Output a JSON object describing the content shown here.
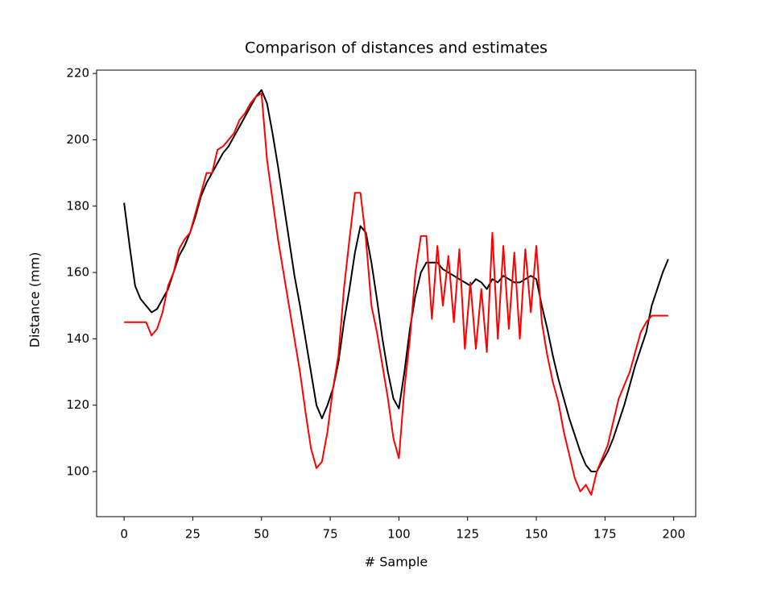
{
  "chart_data": {
    "type": "line",
    "title": "Comparison of distances and estimates",
    "xlabel": "# Sample",
    "ylabel": "Distance (mm)",
    "x": [
      0,
      2,
      4,
      6,
      8,
      10,
      12,
      14,
      16,
      18,
      20,
      22,
      24,
      26,
      28,
      30,
      32,
      34,
      36,
      38,
      40,
      42,
      44,
      46,
      48,
      50,
      52,
      54,
      56,
      58,
      60,
      62,
      64,
      66,
      68,
      70,
      72,
      74,
      76,
      78,
      80,
      82,
      84,
      86,
      88,
      90,
      92,
      94,
      96,
      98,
      100,
      102,
      104,
      106,
      108,
      110,
      112,
      114,
      116,
      118,
      120,
      122,
      124,
      126,
      128,
      130,
      132,
      134,
      136,
      138,
      140,
      142,
      144,
      146,
      148,
      150,
      152,
      154,
      156,
      158,
      160,
      162,
      164,
      166,
      168,
      170,
      172,
      174,
      176,
      178,
      180,
      182,
      184,
      186,
      188,
      190,
      192,
      194,
      196,
      198
    ],
    "series": [
      {
        "color": "#000000",
        "values": [
          181,
          168,
          156,
          152,
          150,
          148,
          149,
          152,
          155,
          160,
          165,
          168,
          172,
          177,
          183,
          187,
          190,
          193,
          196,
          198,
          201,
          204,
          207,
          210,
          213,
          215,
          211,
          202,
          192,
          181,
          170,
          159,
          150,
          140,
          130,
          120,
          116,
          120,
          125,
          133,
          145,
          155,
          166,
          174,
          172,
          163,
          152,
          140,
          130,
          122,
          119,
          130,
          143,
          153,
          160,
          163,
          163,
          163,
          161,
          160,
          159,
          158,
          157,
          156,
          158,
          157,
          155,
          158,
          157,
          159,
          158,
          157,
          157,
          158,
          159,
          158,
          150,
          143,
          135,
          128,
          122,
          116,
          111,
          106,
          102,
          100,
          100,
          103,
          106,
          110,
          115,
          120,
          126,
          132,
          137,
          142,
          150,
          155,
          160,
          164
        ]
      },
      {
        "color": "#ff0000",
        "values": [
          145,
          145,
          145,
          145,
          145,
          141,
          143,
          148,
          156,
          160,
          167,
          170,
          172,
          178,
          184,
          190,
          190,
          197,
          198,
          200,
          202,
          206,
          208,
          211,
          213,
          214,
          194,
          182,
          170,
          160,
          150,
          140,
          130,
          118,
          107,
          101,
          103,
          112,
          125,
          135,
          155,
          170,
          184,
          184,
          170,
          150,
          142,
          132,
          122,
          110,
          104,
          125,
          140,
          160,
          171,
          171,
          146,
          168,
          150,
          165,
          145,
          167,
          137,
          157,
          137,
          155,
          136,
          172,
          140,
          168,
          143,
          166,
          140,
          167,
          148,
          168,
          145,
          135,
          127,
          121,
          112,
          105,
          98,
          94,
          96,
          93,
          100,
          104,
          108,
          115,
          122,
          126,
          130,
          136,
          142,
          145,
          147,
          147,
          147,
          147
        ]
      }
    ],
    "xlim": [
      -10,
      208
    ],
    "ylim": [
      86.4,
      221
    ],
    "xticks": [
      0,
      25,
      50,
      75,
      100,
      125,
      150,
      175,
      200
    ],
    "yticks": [
      100,
      120,
      140,
      160,
      180,
      200,
      220
    ]
  }
}
